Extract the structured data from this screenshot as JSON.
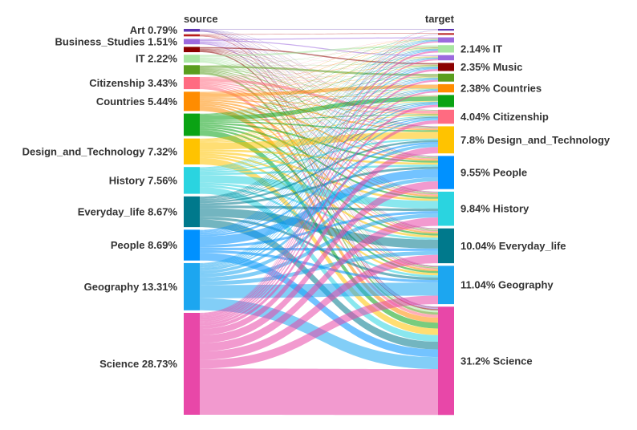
{
  "chart_data": {
    "type": "sankey",
    "headers": {
      "left": "source",
      "right": "target"
    },
    "sources": [
      {
        "name": "Art",
        "percent": 0.79,
        "label": "Art 0.79%",
        "color": "#5e35b1"
      },
      {
        "name": "",
        "percent": 0.6,
        "label": "",
        "color": "#b71c1c"
      },
      {
        "name": "Business_Studies",
        "percent": 1.51,
        "label": "Business_Studies 1.51%",
        "color": "#9c6ade"
      },
      {
        "name": "",
        "percent": 1.5,
        "label": "",
        "color": "#8b0000"
      },
      {
        "name": "IT",
        "percent": 2.22,
        "label": "IT 2.22%",
        "color": "#a8e6a1"
      },
      {
        "name": "",
        "percent": 2.6,
        "label": "",
        "color": "#5a9e1e"
      },
      {
        "name": "Citizenship",
        "percent": 3.43,
        "label": "Citizenship 3.43%",
        "color": "#ff6b81"
      },
      {
        "name": "Countries",
        "percent": 5.44,
        "label": "Countries 5.44%",
        "color": "#ff8c00"
      },
      {
        "name": "",
        "percent": 6.3,
        "label": "",
        "color": "#0aa314"
      },
      {
        "name": "Design_and_Technology",
        "percent": 7.32,
        "label": "Design_and_Technology 7.32%",
        "color": "#ffc300"
      },
      {
        "name": "History",
        "percent": 7.56,
        "label": "History 7.56%",
        "color": "#2ad4e0"
      },
      {
        "name": "Everyday_life",
        "percent": 8.67,
        "label": "Everyday_life 8.67%",
        "color": "#00798c"
      },
      {
        "name": "People",
        "percent": 8.69,
        "label": "People 8.69%",
        "color": "#0091ff"
      },
      {
        "name": "Geography",
        "percent": 13.31,
        "label": "Geography 13.31%",
        "color": "#1ca6f0"
      },
      {
        "name": "Science",
        "percent": 28.73,
        "label": "Science 28.73%",
        "color": "#e847a8"
      }
    ],
    "targets": [
      {
        "name": "",
        "percent": 0.5,
        "label": "",
        "color": "#5e35b1"
      },
      {
        "name": "",
        "percent": 0.4,
        "label": "",
        "color": "#b71c1c"
      },
      {
        "name": "",
        "percent": 1.5,
        "label": "",
        "color": "#9c6ade"
      },
      {
        "name": "IT",
        "percent": 2.14,
        "label": "2.14% IT",
        "color": "#a8e6a1"
      },
      {
        "name": "",
        "percent": 1.5,
        "label": "",
        "color": "#9c6ade"
      },
      {
        "name": "Music",
        "percent": 2.35,
        "label": "2.35% Music",
        "color": "#8b0000"
      },
      {
        "name": "",
        "percent": 2.3,
        "label": "",
        "color": "#5a9e1e"
      },
      {
        "name": "Countries",
        "percent": 2.38,
        "label": "2.38% Countries",
        "color": "#ff8c00"
      },
      {
        "name": "",
        "percent": 3.5,
        "label": "",
        "color": "#0aa314"
      },
      {
        "name": "Citizenship",
        "percent": 4.04,
        "label": "4.04% Citizenship",
        "color": "#ff6b81"
      },
      {
        "name": "Design_and_Technology",
        "percent": 7.8,
        "label": "7.8% Design_and_Technology",
        "color": "#ffc300"
      },
      {
        "name": "People",
        "percent": 9.55,
        "label": "9.55% People",
        "color": "#0091ff"
      },
      {
        "name": "History",
        "percent": 9.84,
        "label": "9.84% History",
        "color": "#2ad4e0"
      },
      {
        "name": "Everyday_life",
        "percent": 10.04,
        "label": "10.04% Everyday_life",
        "color": "#00798c"
      },
      {
        "name": "Geography",
        "percent": 11.04,
        "label": "11.04% Geography",
        "color": "#1ca6f0"
      },
      {
        "name": "Science",
        "percent": 31.2,
        "label": "31.2% Science",
        "color": "#e847a8"
      }
    ],
    "legend": "none",
    "grid": false
  }
}
